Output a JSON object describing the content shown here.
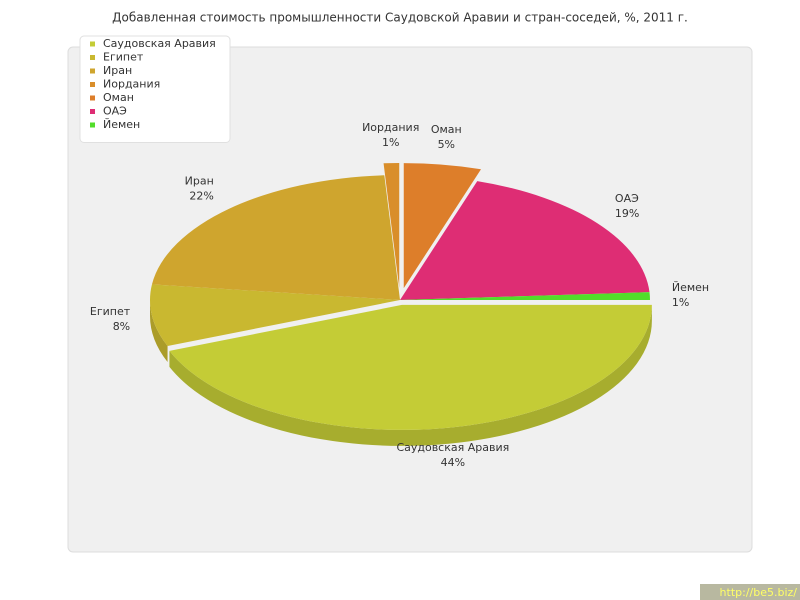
{
  "chart_data": {
    "type": "pie",
    "title": "Добавленная стоимость промышленности Саудовской Аравии и стран-соседей, %, 2011 г.",
    "categories": [
      "Саудовская Аравия",
      "Египет",
      "Иран",
      "Иордания",
      "Оман",
      "ОАЭ",
      "Йемен"
    ],
    "values": [
      44,
      8,
      22,
      1,
      5,
      19,
      1
    ],
    "value_labels": [
      "44%",
      "8%",
      "22%",
      "1%",
      "5%",
      "19%",
      "1%"
    ],
    "colors": [
      "#c4cc36",
      "#c9b830",
      "#cfa52e",
      "#d98e2a",
      "#dd7e2a",
      "#de2d74",
      "#52dd2a"
    ],
    "legend": "top-left"
  },
  "watermark": "http://be5.biz/"
}
